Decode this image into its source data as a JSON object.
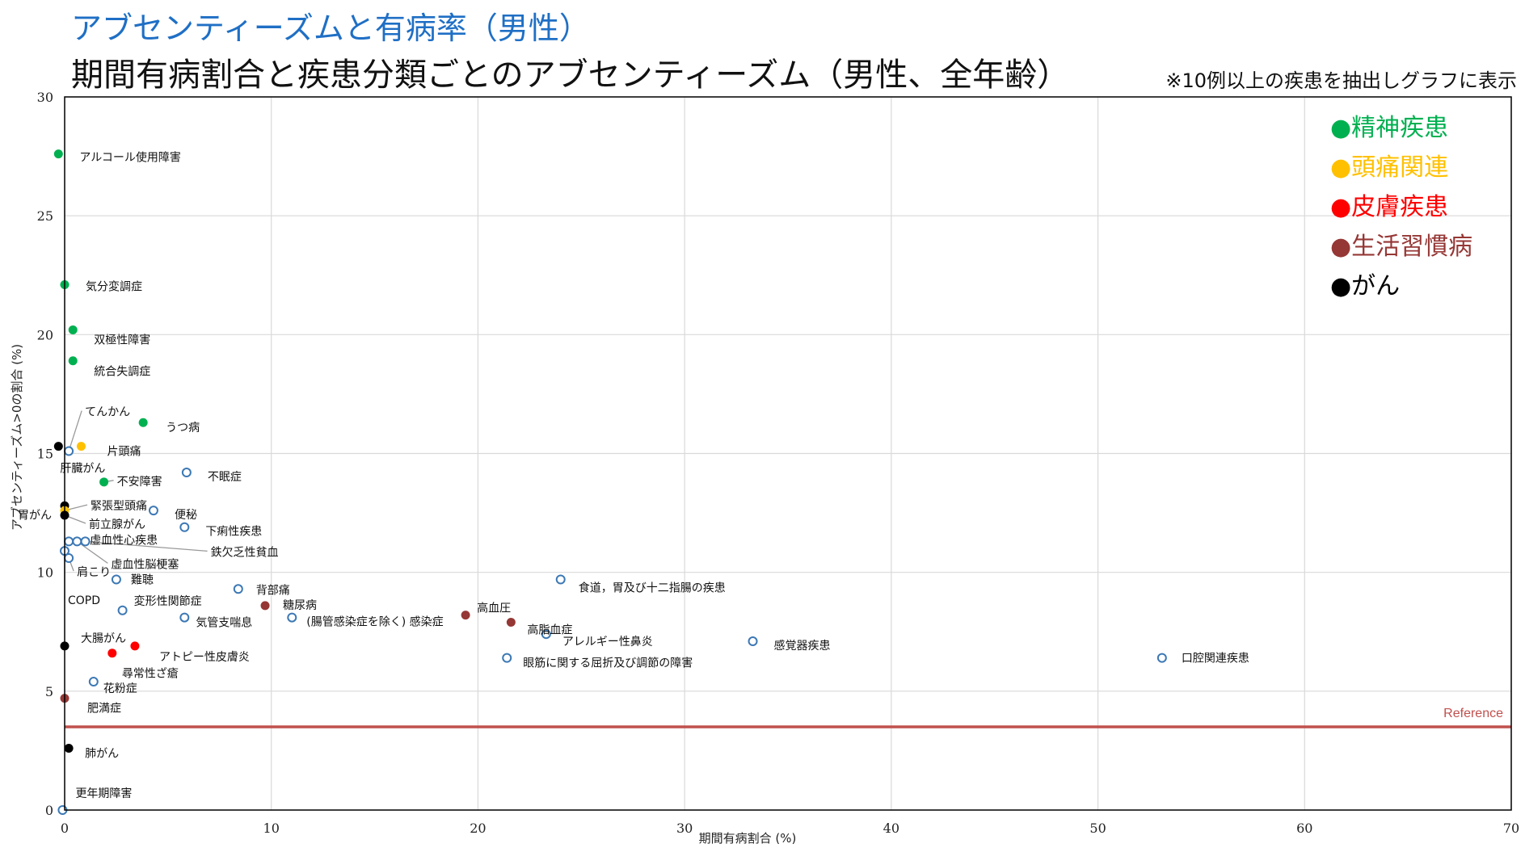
{
  "header": {
    "title": "アブセンティーズムと有病率（男性）",
    "subtitle": "期間有病割合と疾患分類ごとのアブセンティーズム（男性、全年齢）",
    "note": "※10例以上の疾患を抽出しグラフに表示"
  },
  "colors": {
    "精神疾患": "#00b050",
    "頭痛関連": "#ffc000",
    "皮膚疾患": "#ff0000",
    "生活習慣病": "#953735",
    "がん": "#000000",
    "その他": "#3c78b4",
    "reference": "#c0504d",
    "grid": "#d9d9d9"
  },
  "chart_data": {
    "type": "scatter",
    "xlabel": "期間有病割合 (%)",
    "ylabel": "アブセンティーズム>0の割合 (%)",
    "xlim": [
      0,
      70
    ],
    "ylim": [
      0,
      30
    ],
    "xticks": [
      0,
      10,
      20,
      30,
      40,
      50,
      60,
      70
    ],
    "yticks": [
      0,
      5,
      10,
      15,
      20,
      25,
      30
    ],
    "grid": true,
    "legend_position": "top-right",
    "legend": [
      "●精神疾患",
      "●頭痛関連",
      "●皮膚疾患",
      "●生活習慣病",
      "●がん"
    ],
    "reference_line": {
      "y": 3.5,
      "label": "Reference"
    },
    "points": [
      {
        "label": "アルコール使用障害",
        "x": -0.3,
        "y": 27.6,
        "group": "精神疾患"
      },
      {
        "label": "気分変調症",
        "x": 0.0,
        "y": 22.1,
        "group": "精神疾患"
      },
      {
        "label": "双極性障害",
        "x": 0.4,
        "y": 20.2,
        "group": "精神疾患"
      },
      {
        "label": "統合失調症",
        "x": 0.4,
        "y": 18.9,
        "group": "精神疾患"
      },
      {
        "label": "うつ病",
        "x": 3.8,
        "y": 16.3,
        "group": "精神疾患"
      },
      {
        "label": "不安障害",
        "x": 1.9,
        "y": 13.8,
        "group": "精神疾患"
      },
      {
        "label": "てんかん",
        "x": 0.2,
        "y": 15.1,
        "group": "その他"
      },
      {
        "label": "片頭痛",
        "x": 0.8,
        "y": 15.3,
        "group": "頭痛関連"
      },
      {
        "label": "肝臓がん",
        "x": -0.3,
        "y": 15.3,
        "group": "がん"
      },
      {
        "label": "不眠症",
        "x": 5.9,
        "y": 14.2,
        "group": "その他"
      },
      {
        "label": "胃がん",
        "x": 0.0,
        "y": 12.8,
        "group": "がん"
      },
      {
        "label": "緊張型頭痛",
        "x": 0.0,
        "y": 12.6,
        "group": "頭痛関連"
      },
      {
        "label": "前立腺がん",
        "x": 0.0,
        "y": 12.4,
        "group": "がん"
      },
      {
        "label": "便秘",
        "x": 4.3,
        "y": 12.6,
        "group": "その他"
      },
      {
        "label": "下痢性疾患",
        "x": 5.8,
        "y": 11.9,
        "group": "その他"
      },
      {
        "label": "虚血性心疾患",
        "x": 0.2,
        "y": 11.3,
        "group": "その他"
      },
      {
        "label": "鉄欠乏性貧血",
        "x": 1.0,
        "y": 11.3,
        "group": "その他"
      },
      {
        "label": "虚血性脳梗塞",
        "x": 0.6,
        "y": 11.3,
        "group": "その他"
      },
      {
        "label": "肩こり",
        "x": 0.2,
        "y": 10.6,
        "group": "その他"
      },
      {
        "label": "COPD",
        "x": 0.0,
        "y": 10.9,
        "group": "その他"
      },
      {
        "label": "難聴",
        "x": 2.5,
        "y": 9.7,
        "group": "その他"
      },
      {
        "label": "背部痛",
        "x": 8.4,
        "y": 9.3,
        "group": "その他"
      },
      {
        "label": "変形性関節症",
        "x": 2.8,
        "y": 8.4,
        "group": "その他"
      },
      {
        "label": "気管支喘息",
        "x": 5.8,
        "y": 8.1,
        "group": "その他"
      },
      {
        "label": "糖尿病",
        "x": 9.7,
        "y": 8.6,
        "group": "生活習慣病"
      },
      {
        "label": "(腸管感染症を除く) 感染症",
        "x": 11.0,
        "y": 8.1,
        "group": "その他"
      },
      {
        "label": "食道，胃及び十二指腸の疾患",
        "x": 24.0,
        "y": 9.7,
        "group": "その他"
      },
      {
        "label": "高血圧",
        "x": 19.4,
        "y": 8.2,
        "group": "生活習慣病"
      },
      {
        "label": "高脂血症",
        "x": 21.6,
        "y": 7.9,
        "group": "生活習慣病"
      },
      {
        "label": "アレルギー性鼻炎",
        "x": 23.3,
        "y": 7.4,
        "group": "その他"
      },
      {
        "label": "眼筋に関する屈折及び調節の障害",
        "x": 21.4,
        "y": 6.4,
        "group": "その他"
      },
      {
        "label": "感覚器疾患",
        "x": 33.3,
        "y": 7.1,
        "group": "その他"
      },
      {
        "label": "口腔関連疾患",
        "x": 53.1,
        "y": 6.4,
        "group": "その他"
      },
      {
        "label": "大腸がん",
        "x": 0.0,
        "y": 6.9,
        "group": "がん"
      },
      {
        "label": "アトピー性皮膚炎",
        "x": 3.4,
        "y": 6.9,
        "group": "皮膚疾患"
      },
      {
        "label": "尋常性ざ瘡",
        "x": 2.3,
        "y": 6.6,
        "group": "皮膚疾患"
      },
      {
        "label": "花粉症",
        "x": 1.4,
        "y": 5.4,
        "group": "その他"
      },
      {
        "label": "肥満症",
        "x": 0.0,
        "y": 4.7,
        "group": "生活習慣病"
      },
      {
        "label": "肺がん",
        "x": 0.2,
        "y": 2.6,
        "group": "がん"
      },
      {
        "label": "更年期障害",
        "x": -0.1,
        "y": 0.0,
        "group": "その他"
      }
    ]
  }
}
